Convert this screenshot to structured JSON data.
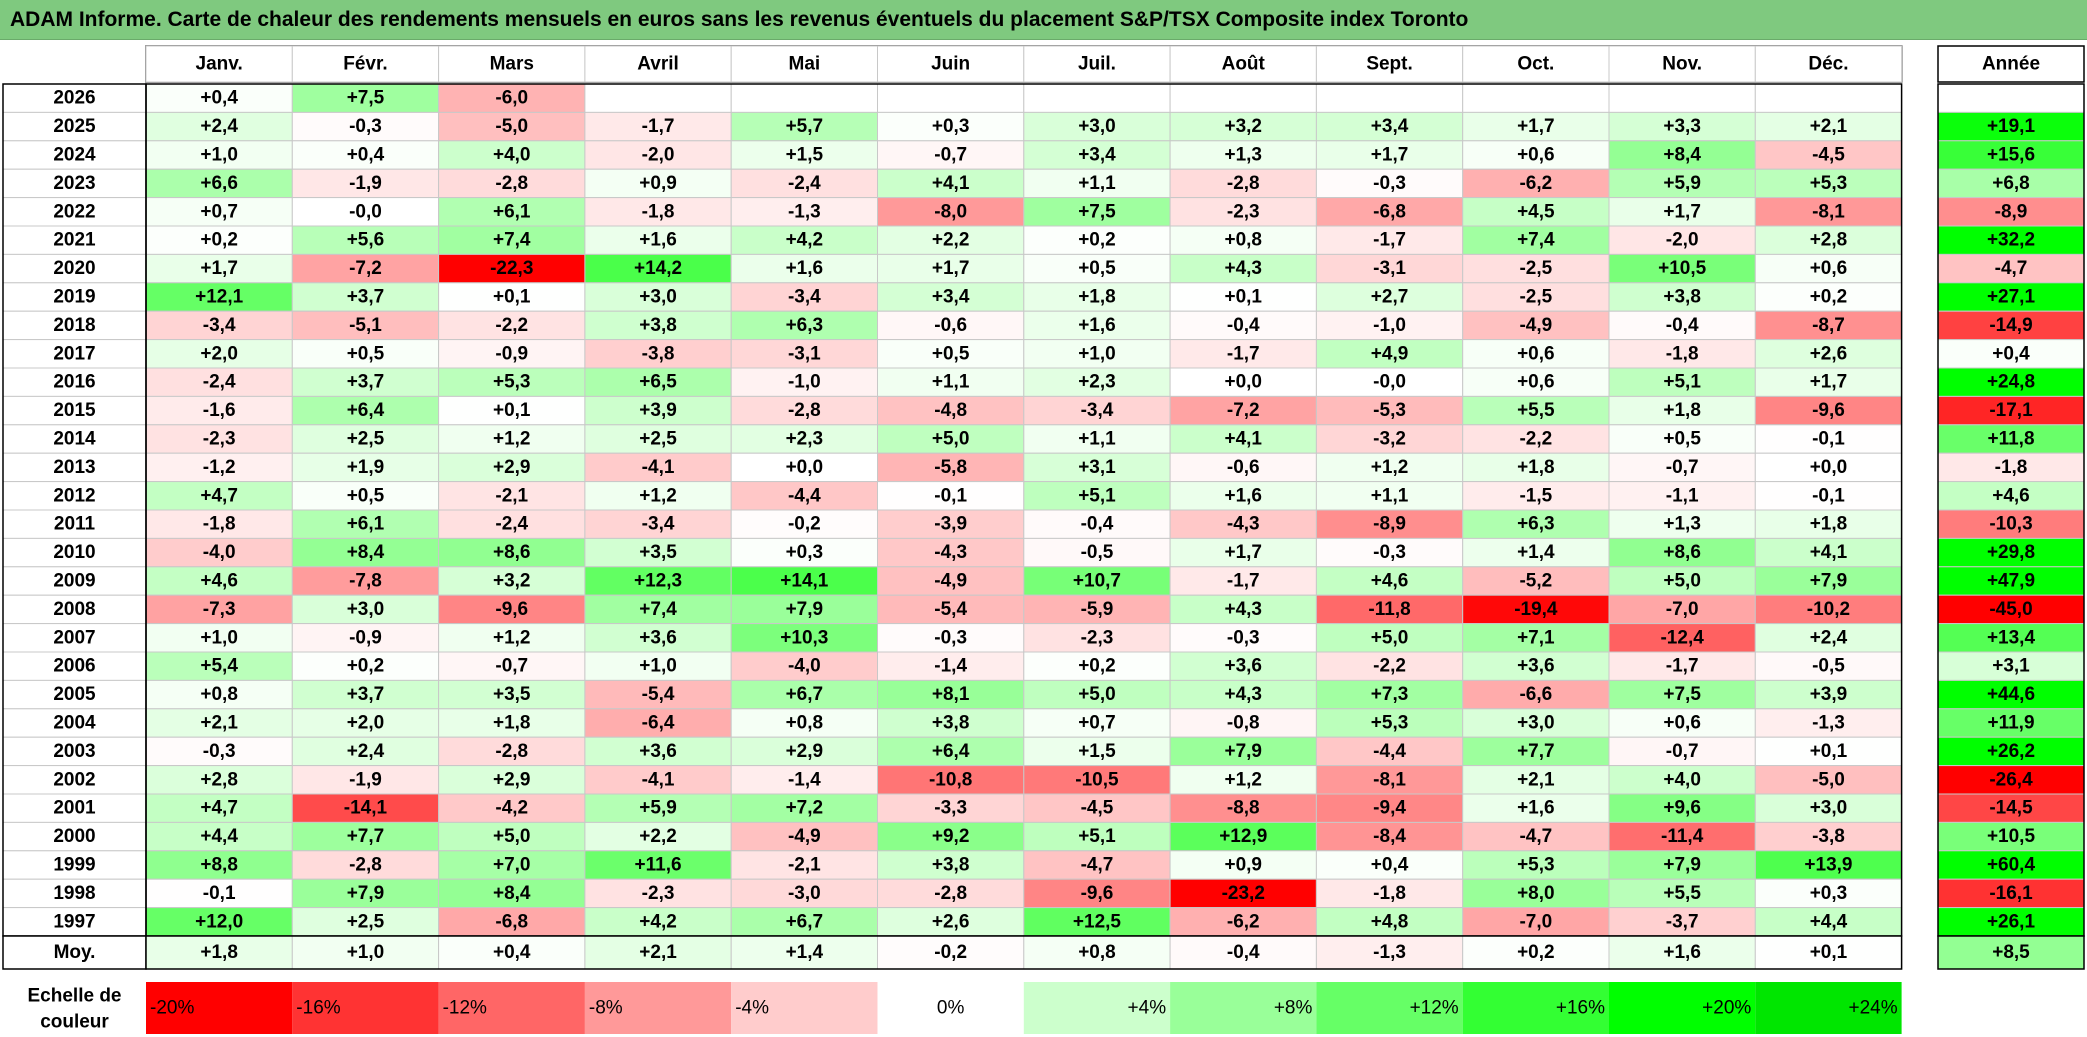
{
  "title": "ADAM Informe. Carte de chaleur des rendements mensuels en euros sans les revenus éventuels du placement S&P/TSX Composite index Toronto",
  "chart_data": {
    "type": "heatmap",
    "months": [
      "Janv.",
      "Févr.",
      "Mars",
      "Avril",
      "Mai",
      "Juin",
      "Juil.",
      "Août",
      "Sept.",
      "Oct.",
      "Nov.",
      "Déc."
    ],
    "annual_header": "Année",
    "rows": [
      {
        "year": "2026",
        "values": [
          0.4,
          7.5,
          -6.0,
          null,
          null,
          null,
          null,
          null,
          null,
          null,
          null,
          null
        ],
        "annual": null
      },
      {
        "year": "2025",
        "values": [
          2.4,
          -0.3,
          -5.0,
          -1.7,
          5.7,
          0.3,
          3.0,
          3.2,
          3.4,
          1.7,
          3.3,
          2.1
        ],
        "annual": 19.1
      },
      {
        "year": "2024",
        "values": [
          1.0,
          0.4,
          4.0,
          -2.0,
          1.5,
          -0.7,
          3.4,
          1.3,
          1.7,
          0.6,
          8.4,
          -4.5
        ],
        "annual": 15.6
      },
      {
        "year": "2023",
        "values": [
          6.6,
          -1.9,
          -2.8,
          0.9,
          -2.4,
          4.1,
          1.1,
          -2.8,
          -0.3,
          -6.2,
          5.9,
          5.3
        ],
        "annual": 6.8
      },
      {
        "year": "2022",
        "values": [
          0.7,
          -0.0,
          6.1,
          -1.8,
          -1.3,
          -8.0,
          7.5,
          -2.3,
          -6.8,
          4.5,
          1.7,
          -8.1
        ],
        "annual": -8.9
      },
      {
        "year": "2021",
        "values": [
          0.2,
          5.6,
          7.4,
          1.6,
          4.2,
          2.2,
          0.2,
          0.8,
          -1.7,
          7.4,
          -2.0,
          2.8
        ],
        "annual": 32.2
      },
      {
        "year": "2020",
        "values": [
          1.7,
          -7.2,
          -22.3,
          14.2,
          1.6,
          1.7,
          0.5,
          4.3,
          -3.1,
          -2.5,
          10.5,
          0.6
        ],
        "annual": -4.7
      },
      {
        "year": "2019",
        "values": [
          12.1,
          3.7,
          0.1,
          3.0,
          -3.4,
          3.4,
          1.8,
          0.1,
          2.7,
          -2.5,
          3.8,
          0.2
        ],
        "annual": 27.1
      },
      {
        "year": "2018",
        "values": [
          -3.4,
          -5.1,
          -2.2,
          3.8,
          6.3,
          -0.6,
          1.6,
          -0.4,
          -1.0,
          -4.9,
          -0.4,
          -8.7
        ],
        "annual": -14.9
      },
      {
        "year": "2017",
        "values": [
          2.0,
          0.5,
          -0.9,
          -3.8,
          -3.1,
          0.5,
          1.0,
          -1.7,
          4.9,
          0.6,
          -1.8,
          2.6
        ],
        "annual": 0.4
      },
      {
        "year": "2016",
        "values": [
          -2.4,
          3.7,
          5.3,
          6.5,
          -1.0,
          1.1,
          2.3,
          0.0,
          -0.0,
          0.6,
          5.1,
          1.7
        ],
        "annual": 24.8
      },
      {
        "year": "2015",
        "values": [
          -1.6,
          6.4,
          0.1,
          3.9,
          -2.8,
          -4.8,
          -3.4,
          -7.2,
          -5.3,
          5.5,
          1.8,
          -9.6
        ],
        "annual": -17.1
      },
      {
        "year": "2014",
        "values": [
          -2.3,
          2.5,
          1.2,
          2.5,
          2.3,
          5.0,
          1.1,
          4.1,
          -3.2,
          -2.2,
          0.5,
          -0.1
        ],
        "annual": 11.8
      },
      {
        "year": "2013",
        "values": [
          -1.2,
          1.9,
          2.9,
          -4.1,
          0.0,
          -5.8,
          3.1,
          -0.6,
          1.2,
          1.8,
          -0.7,
          0.0
        ],
        "annual": -1.8
      },
      {
        "year": "2012",
        "values": [
          4.7,
          0.5,
          -2.1,
          1.2,
          -4.4,
          -0.1,
          5.1,
          1.6,
          1.1,
          -1.5,
          -1.1,
          -0.1
        ],
        "annual": 4.6
      },
      {
        "year": "2011",
        "values": [
          -1.8,
          6.1,
          -2.4,
          -3.4,
          -0.2,
          -3.9,
          -0.4,
          -4.3,
          -8.9,
          6.3,
          1.3,
          1.8
        ],
        "annual": -10.3
      },
      {
        "year": "2010",
        "values": [
          -4.0,
          8.4,
          8.6,
          3.5,
          0.3,
          -4.3,
          -0.5,
          1.7,
          -0.3,
          1.4,
          8.6,
          4.1
        ],
        "annual": 29.8
      },
      {
        "year": "2009",
        "values": [
          4.6,
          -7.8,
          3.2,
          12.3,
          14.1,
          -4.9,
          10.7,
          -1.7,
          4.6,
          -5.2,
          5.0,
          7.9
        ],
        "annual": 47.9
      },
      {
        "year": "2008",
        "values": [
          -7.3,
          3.0,
          -9.6,
          7.4,
          7.9,
          -5.4,
          -5.9,
          4.3,
          -11.8,
          -19.4,
          -7.0,
          -10.2
        ],
        "annual": -45.0
      },
      {
        "year": "2007",
        "values": [
          1.0,
          -0.9,
          1.2,
          3.6,
          10.3,
          -0.3,
          -2.3,
          -0.3,
          5.0,
          7.1,
          -12.4,
          2.4
        ],
        "annual": 13.4
      },
      {
        "year": "2006",
        "values": [
          5.4,
          0.2,
          -0.7,
          1.0,
          -4.0,
          -1.4,
          0.2,
          3.6,
          -2.2,
          3.6,
          -1.7,
          -0.5
        ],
        "annual": 3.1
      },
      {
        "year": "2005",
        "values": [
          0.8,
          3.7,
          3.5,
          -5.4,
          6.7,
          8.1,
          5.0,
          4.3,
          7.3,
          -6.6,
          7.5,
          3.9
        ],
        "annual": 44.6
      },
      {
        "year": "2004",
        "values": [
          2.1,
          2.0,
          1.8,
          -6.4,
          0.8,
          3.8,
          0.7,
          -0.8,
          5.3,
          3.0,
          0.6,
          -1.3
        ],
        "annual": 11.9
      },
      {
        "year": "2003",
        "values": [
          -0.3,
          2.4,
          -2.8,
          3.6,
          2.9,
          6.4,
          1.5,
          7.9,
          -4.4,
          7.7,
          -0.7,
          0.1
        ],
        "annual": 26.2
      },
      {
        "year": "2002",
        "values": [
          2.8,
          -1.9,
          2.9,
          -4.1,
          -1.4,
          -10.8,
          -10.5,
          1.2,
          -8.1,
          2.1,
          4.0,
          -5.0
        ],
        "annual": -26.4
      },
      {
        "year": "2001",
        "values": [
          4.7,
          -14.1,
          -4.2,
          5.9,
          7.2,
          -3.3,
          -4.5,
          -8.8,
          -9.4,
          1.6,
          9.6,
          3.0
        ],
        "annual": -14.5
      },
      {
        "year": "2000",
        "values": [
          4.4,
          7.7,
          5.0,
          2.2,
          -4.9,
          9.2,
          5.1,
          12.9,
          -8.4,
          -4.7,
          -11.4,
          -3.8
        ],
        "annual": 10.5
      },
      {
        "year": "1999",
        "values": [
          8.8,
          -2.8,
          7.0,
          11.6,
          -2.1,
          3.8,
          -4.7,
          0.9,
          0.4,
          5.3,
          7.9,
          13.9
        ],
        "annual": 60.4
      },
      {
        "year": "1998",
        "values": [
          -0.1,
          7.9,
          8.4,
          -2.3,
          -3.0,
          -2.8,
          -9.6,
          -23.2,
          -1.8,
          8.0,
          5.5,
          0.3
        ],
        "annual": -16.1
      },
      {
        "year": "1997",
        "values": [
          12.0,
          2.5,
          -6.8,
          4.2,
          6.7,
          2.6,
          12.5,
          -6.2,
          4.8,
          -7.0,
          -3.7,
          4.4
        ],
        "annual": 26.1
      }
    ],
    "average_label": "Moy.",
    "average_values": [
      1.8,
      1.0,
      0.4,
      2.1,
      1.4,
      -0.2,
      0.8,
      -0.4,
      -1.3,
      0.2,
      1.6,
      0.1
    ],
    "average_annual": 8.5,
    "negative_zero_cells": [
      [
        4,
        1
      ],
      [
        10,
        8
      ]
    ],
    "scale_label": [
      "Echelle de",
      "couleur"
    ],
    "scale": [
      {
        "label": "-20%",
        "value": -20,
        "color": "#ff0000"
      },
      {
        "label": "-16%",
        "value": -16,
        "color": "#ff3333"
      },
      {
        "label": "-12%",
        "value": -12,
        "color": "#ff6666"
      },
      {
        "label": "-8%",
        "value": -8,
        "color": "#ff9999"
      },
      {
        "label": "-4%",
        "value": -4,
        "color": "#ffcccc"
      },
      {
        "label": "0%",
        "value": 0,
        "color": "#ffffff"
      },
      {
        "label": "+4%",
        "value": 4,
        "color": "#ccffcc"
      },
      {
        "label": "+8%",
        "value": 8,
        "color": "#99ff99"
      },
      {
        "label": "+12%",
        "value": 12,
        "color": "#66ff66"
      },
      {
        "label": "+16%",
        "value": 16,
        "color": "#33ff33"
      },
      {
        "label": "+20%",
        "value": 20,
        "color": "#00ff00"
      },
      {
        "label": "+24%",
        "value": 24,
        "color": "#00e600"
      }
    ],
    "colors": {
      "negative_max": "#ff0000",
      "zero": "#ffffff",
      "positive_max": "#00ff00",
      "title_bar": "#7fc97f"
    }
  }
}
